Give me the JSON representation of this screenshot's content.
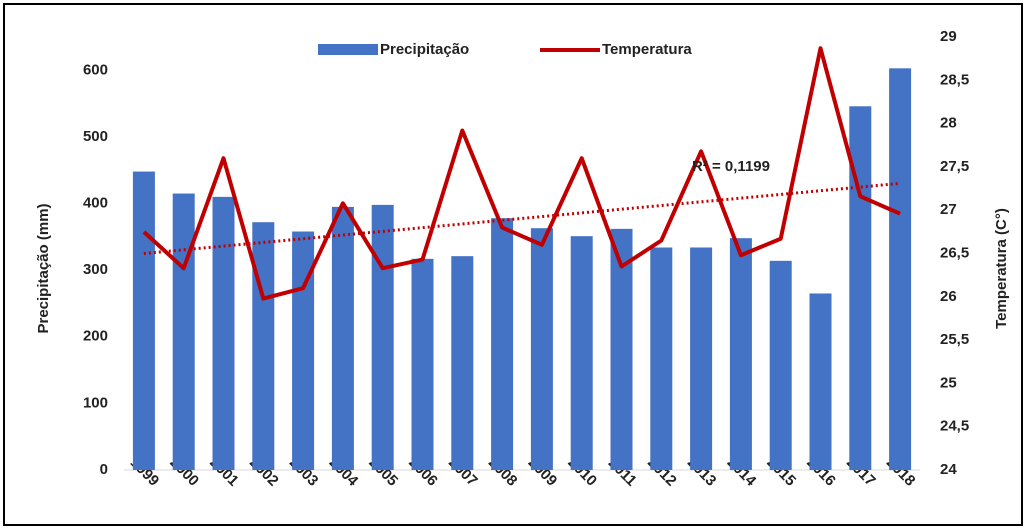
{
  "chart_data": {
    "type": "bar-line",
    "categories": [
      "1999",
      "2000",
      "2001",
      "2002",
      "2003",
      "2004",
      "2005",
      "2006",
      "2007",
      "2008",
      "2009",
      "2010",
      "2011",
      "2012",
      "2013",
      "2014",
      "2015",
      "2016",
      "2017",
      "2018"
    ],
    "series": [
      {
        "name": "Precipitação",
        "type": "bar",
        "color": "#4472c4",
        "values": [
          448,
          415,
          410,
          372,
          358,
          395,
          398,
          317,
          321,
          378,
          363,
          351,
          362,
          334,
          334,
          348,
          314,
          265,
          546,
          603
        ]
      },
      {
        "name": "Temperatura",
        "type": "line",
        "axis": "y2",
        "color": "#c00000",
        "values": [
          26.75,
          26.33,
          27.6,
          25.98,
          26.1,
          27.08,
          26.33,
          26.43,
          27.92,
          26.8,
          26.6,
          27.6,
          26.35,
          26.65,
          27.68,
          26.48,
          26.67,
          28.87,
          27.16,
          26.96
        ]
      }
    ],
    "trend": {
      "axis": "y2",
      "color": "#c00000",
      "values": [
        26.5,
        27.31
      ],
      "label": "R² = 0,1199"
    },
    "ylabel": "Precipitação (mm)",
    "y2label": "Temperatura (C°)",
    "ylim": [
      0,
      650
    ],
    "yticks": [
      0,
      100,
      200,
      300,
      400,
      500,
      600
    ],
    "y2lim": [
      24,
      29
    ],
    "y2ticks": [
      24,
      {
        "value": 24.5,
        "label": "24,5"
      },
      25,
      {
        "value": 25.5,
        "label": "25,5"
      },
      26,
      {
        "value": 26.5,
        "label": "26,5"
      },
      27,
      {
        "value": 27.5,
        "label": "27,5"
      },
      28,
      {
        "value": 28.5,
        "label": "28,5"
      },
      29
    ],
    "grid": false,
    "legend": "top"
  }
}
